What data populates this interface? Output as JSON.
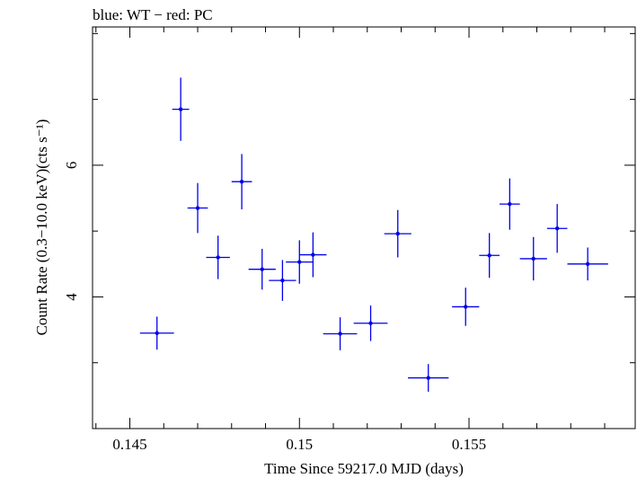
{
  "chart_data": {
    "type": "scatter",
    "title": "blue: WT − red: PC",
    "xlabel": "Time Since 59217.0 MJD (days)",
    "ylabel": "Count Rate (0.3−10.0 keV)(cts s⁻¹)",
    "xlim": [
      0.1439,
      0.1599
    ],
    "ylim": [
      2.0,
      8.1
    ],
    "x_ticks": [
      0.145,
      0.15,
      0.155
    ],
    "x_tick_labels": [
      "0.145",
      "0.15",
      "0.155"
    ],
    "y_ticks": [
      4,
      6
    ],
    "y_tick_labels": [
      "4",
      "6"
    ],
    "colors": {
      "WT": "#0000ee",
      "PC": "#ff0000"
    },
    "series": [
      {
        "name": "WT",
        "color": "#0000ee",
        "points": [
          {
            "x": 0.1458,
            "xerr": 0.0005,
            "y": 3.45,
            "yerr": 0.25
          },
          {
            "x": 0.1465,
            "xerr": 0.00025,
            "y": 6.85,
            "yerr": 0.48
          },
          {
            "x": 0.147,
            "xerr": 0.0003,
            "y": 5.35,
            "yerr": 0.38
          },
          {
            "x": 0.1476,
            "xerr": 0.00035,
            "y": 4.6,
            "yerr": 0.33
          },
          {
            "x": 0.1483,
            "xerr": 0.0003,
            "y": 5.75,
            "yerr": 0.42
          },
          {
            "x": 0.1489,
            "xerr": 0.0004,
            "y": 4.42,
            "yerr": 0.31
          },
          {
            "x": 0.1495,
            "xerr": 0.0004,
            "y": 4.25,
            "yerr": 0.31
          },
          {
            "x": 0.15,
            "xerr": 0.0004,
            "y": 4.53,
            "yerr": 0.33
          },
          {
            "x": 0.1504,
            "xerr": 0.0004,
            "y": 4.64,
            "yerr": 0.34
          },
          {
            "x": 0.1512,
            "xerr": 0.0005,
            "y": 3.44,
            "yerr": 0.25
          },
          {
            "x": 0.1521,
            "xerr": 0.0005,
            "y": 3.6,
            "yerr": 0.27
          },
          {
            "x": 0.1529,
            "xerr": 0.0004,
            "y": 4.96,
            "yerr": 0.36
          },
          {
            "x": 0.1538,
            "xerr": 0.0006,
            "y": 2.77,
            "yerr": 0.21
          },
          {
            "x": 0.1549,
            "xerr": 0.0004,
            "y": 3.85,
            "yerr": 0.29
          },
          {
            "x": 0.1556,
            "xerr": 0.0003,
            "y": 4.63,
            "yerr": 0.34
          },
          {
            "x": 0.1562,
            "xerr": 0.0003,
            "y": 5.41,
            "yerr": 0.39
          },
          {
            "x": 0.1569,
            "xerr": 0.0004,
            "y": 4.58,
            "yerr": 0.33
          },
          {
            "x": 0.1576,
            "xerr": 0.0003,
            "y": 5.04,
            "yerr": 0.37
          },
          {
            "x": 0.1585,
            "xerr": 0.0006,
            "y": 4.5,
            "yerr": 0.25
          }
        ]
      }
    ]
  }
}
